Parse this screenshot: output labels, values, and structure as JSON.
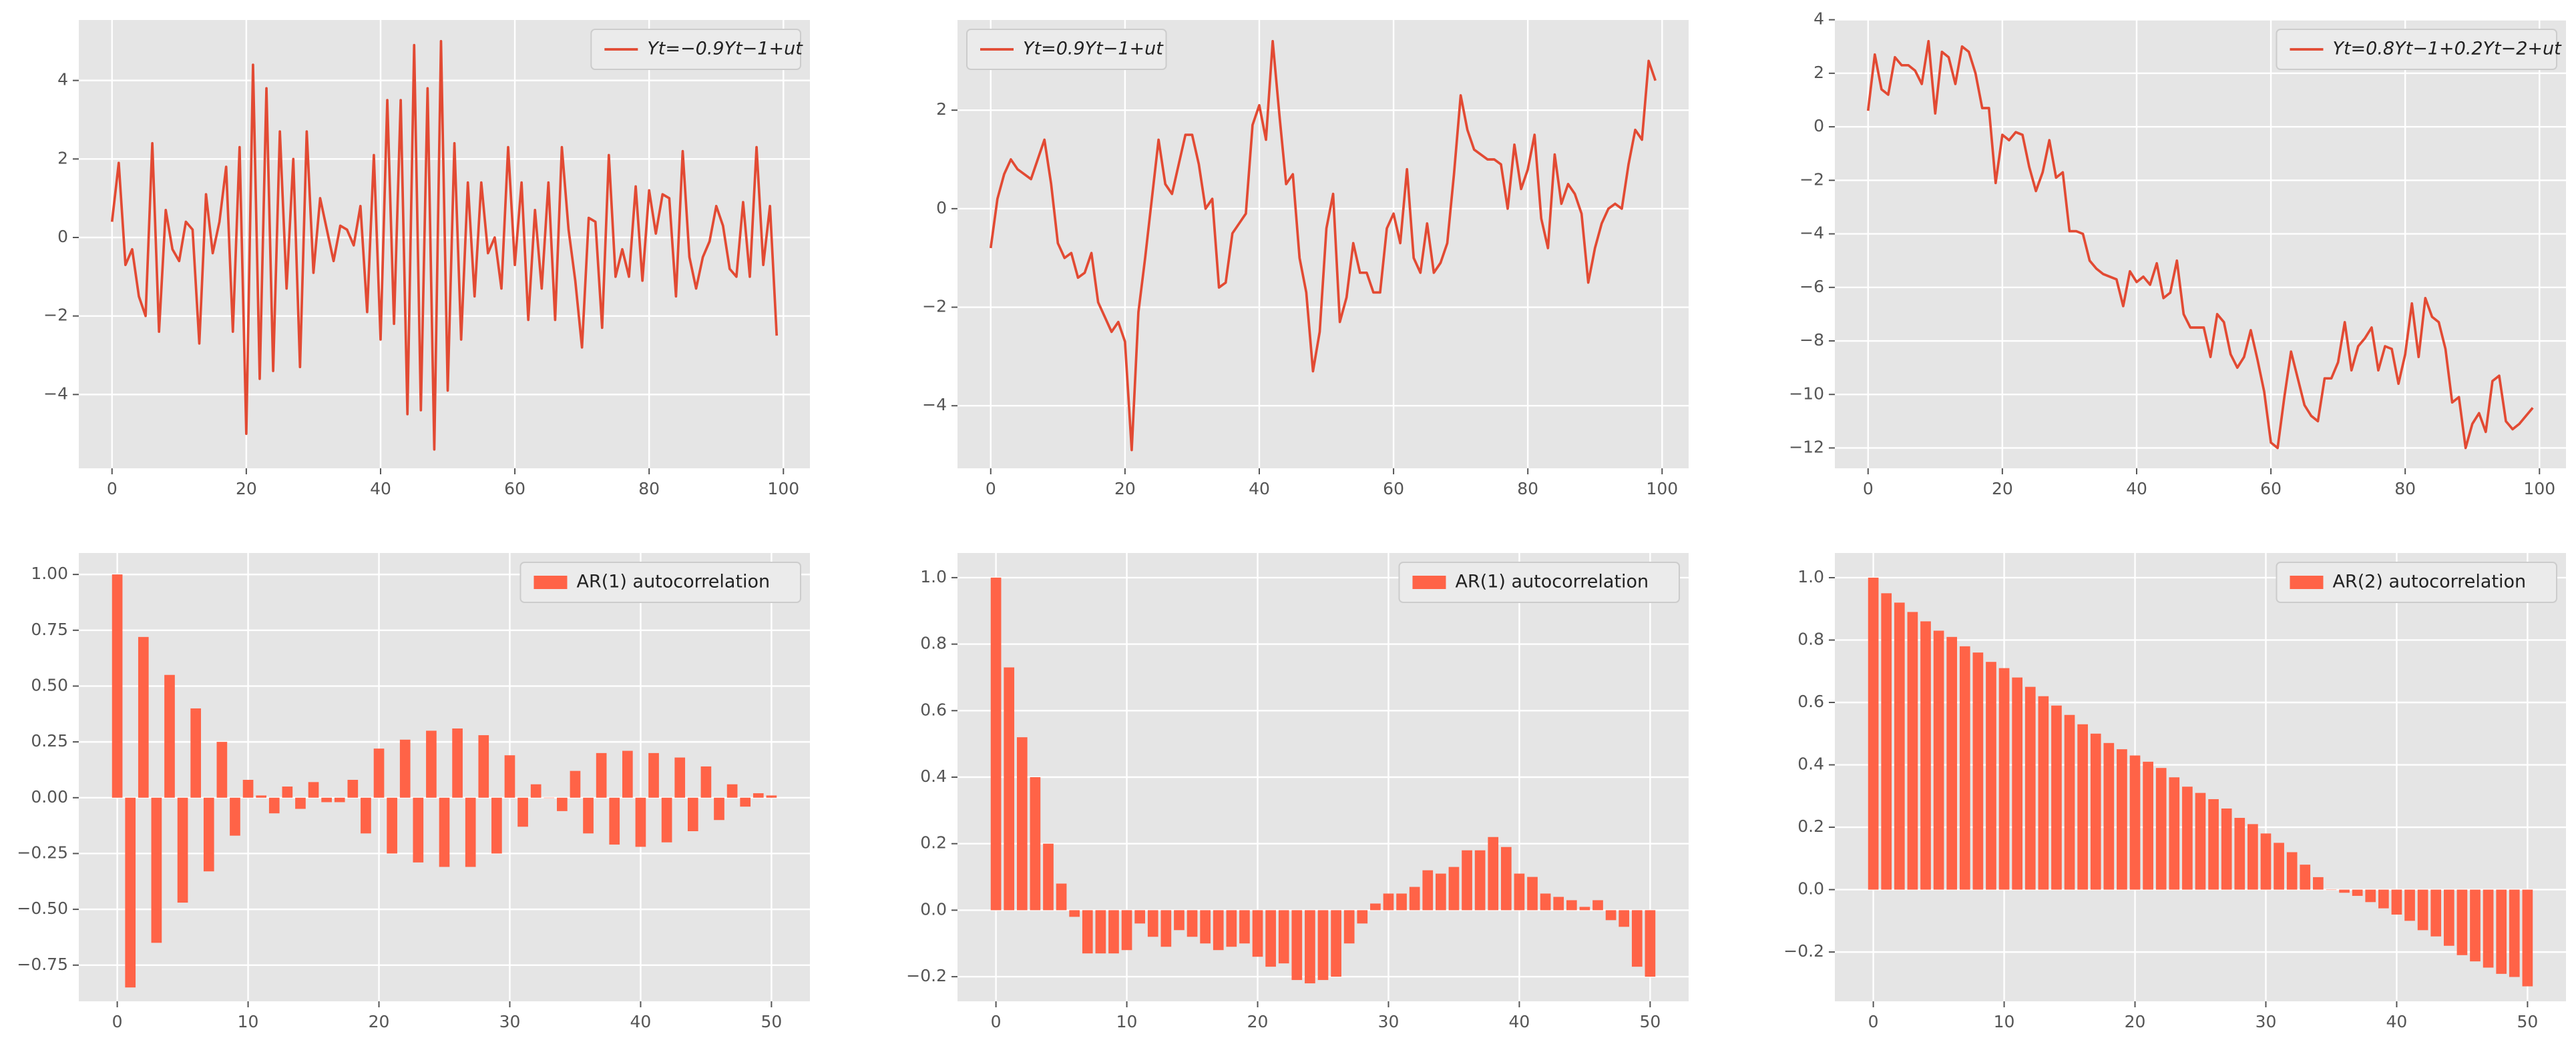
{
  "chart_data": [
    {
      "type": "line",
      "series": [
        {
          "name": "Yt=−0.9Yt−1+ut",
          "color": "#e24a33",
          "values": [
            0.4,
            1.9,
            -0.7,
            -0.3,
            -1.5,
            -2.0,
            2.4,
            -2.4,
            0.7,
            -0.3,
            -0.6,
            0.4,
            0.2,
            -2.7,
            1.1,
            -0.4,
            0.4,
            1.8,
            -2.4,
            2.3,
            -5.0,
            4.4,
            -3.6,
            3.8,
            -3.4,
            2.7,
            -1.3,
            2.0,
            -3.3,
            2.7,
            -0.9,
            1.0,
            0.2,
            -0.6,
            0.3,
            0.2,
            -0.2,
            0.8,
            -1.9,
            2.1,
            -2.6,
            3.5,
            -2.2,
            3.5,
            -4.5,
            4.9,
            -4.4,
            3.8,
            -5.4,
            5.0,
            -3.9,
            2.4,
            -2.6,
            1.4,
            -1.5,
            1.4,
            -0.4,
            0.0,
            -1.3,
            2.3,
            -0.7,
            1.4,
            -2.1,
            0.7,
            -1.3,
            1.4,
            -2.1,
            2.3,
            0.2,
            -1.1,
            -2.8,
            0.5,
            0.4,
            -2.3,
            2.1,
            -1.0,
            -0.3,
            -1.0,
            1.3,
            -1.1,
            1.2,
            0.1,
            1.1,
            1.0,
            -1.5,
            2.2,
            -0.5,
            -1.3,
            -0.5,
            -0.1,
            0.8,
            0.3,
            -0.8,
            -1.0,
            0.9,
            -1.0,
            2.3,
            -0.7,
            0.8,
            -2.5
          ]
        }
      ],
      "x": [
        0,
        1,
        2,
        3,
        4,
        5,
        6,
        7,
        8,
        9,
        10,
        11,
        12,
        13,
        14,
        15,
        16,
        17,
        18,
        19,
        20,
        21,
        22,
        23,
        24,
        25,
        26,
        27,
        28,
        29,
        30,
        31,
        32,
        33,
        34,
        35,
        36,
        37,
        38,
        39,
        40,
        41,
        42,
        43,
        44,
        45,
        46,
        47,
        48,
        49,
        50,
        51,
        52,
        53,
        54,
        55,
        56,
        57,
        58,
        59,
        60,
        61,
        62,
        63,
        64,
        65,
        66,
        67,
        68,
        69,
        70,
        71,
        72,
        73,
        74,
        75,
        76,
        77,
        78,
        79,
        80,
        81,
        82,
        83,
        84,
        85,
        86,
        87,
        88,
        89,
        90,
        91,
        92,
        93,
        94,
        95,
        96,
        97,
        98,
        99
      ],
      "xlim": [
        -4.95,
        103.95
      ],
      "xticks": [
        0,
        20,
        40,
        60,
        80,
        100
      ],
      "ylim": [
        -5.88,
        5.54
      ],
      "yticks": [
        {
          "value": -4,
          "label": "−4"
        },
        {
          "value": -2,
          "label": "−2"
        },
        0,
        2,
        4
      ],
      "grid": true,
      "legend": "upper right"
    },
    {
      "type": "line",
      "series": [
        {
          "name": "Yt=0.9Yt−1+ut",
          "color": "#e24a33",
          "values": [
            -0.8,
            0.2,
            0.7,
            1.0,
            0.8,
            0.7,
            0.6,
            1.0,
            1.4,
            0.5,
            -0.7,
            -1.0,
            -0.9,
            -1.4,
            -1.3,
            -0.9,
            -1.9,
            -2.2,
            -2.5,
            -2.3,
            -2.7,
            -4.9,
            -2.1,
            -1.0,
            0.2,
            1.4,
            0.5,
            0.3,
            0.9,
            1.5,
            1.5,
            0.9,
            0.0,
            0.2,
            -1.6,
            -1.5,
            -0.5,
            -0.3,
            -0.1,
            1.7,
            2.1,
            1.4,
            3.4,
            1.9,
            0.5,
            0.7,
            -1.0,
            -1.7,
            -3.3,
            -2.5,
            -0.4,
            0.3,
            -2.3,
            -1.8,
            -0.7,
            -1.3,
            -1.3,
            -1.7,
            -1.7,
            -0.4,
            -0.1,
            -0.7,
            0.8,
            -1.0,
            -1.3,
            -0.3,
            -1.3,
            -1.1,
            -0.7,
            0.7,
            2.3,
            1.6,
            1.2,
            1.1,
            1.0,
            1.0,
            0.9,
            0.0,
            1.3,
            0.4,
            0.8,
            1.5,
            -0.2,
            -0.8,
            1.1,
            0.1,
            0.5,
            0.3,
            -0.1,
            -1.5,
            -0.8,
            -0.3,
            0.0,
            0.1,
            0.0,
            0.9,
            1.6,
            1.4,
            3.0,
            2.6
          ]
        }
      ],
      "x": [
        0,
        1,
        2,
        3,
        4,
        5,
        6,
        7,
        8,
        9,
        10,
        11,
        12,
        13,
        14,
        15,
        16,
        17,
        18,
        19,
        20,
        21,
        22,
        23,
        24,
        25,
        26,
        27,
        28,
        29,
        30,
        31,
        32,
        33,
        34,
        35,
        36,
        37,
        38,
        39,
        40,
        41,
        42,
        43,
        44,
        45,
        46,
        47,
        48,
        49,
        50,
        51,
        52,
        53,
        54,
        55,
        56,
        57,
        58,
        59,
        60,
        61,
        62,
        63,
        64,
        65,
        66,
        67,
        68,
        69,
        70,
        71,
        72,
        73,
        74,
        75,
        76,
        77,
        78,
        79,
        80,
        81,
        82,
        83,
        84,
        85,
        86,
        87,
        88,
        89,
        90,
        91,
        92,
        93,
        94,
        95,
        96,
        97,
        98,
        99
      ],
      "xlim": [
        -4.95,
        103.95
      ],
      "xticks": [
        0,
        20,
        40,
        60,
        80,
        100
      ],
      "ylim": [
        -5.27,
        3.83
      ],
      "yticks": [
        {
          "value": -4,
          "label": "−4"
        },
        {
          "value": -2,
          "label": "−2"
        },
        0,
        2
      ],
      "grid": true,
      "legend": "upper left"
    },
    {
      "type": "line",
      "series": [
        {
          "name": "Yt=0.8Yt−1+0.2Yt−2+ut",
          "color": "#e24a33",
          "values": [
            0.6,
            2.7,
            1.4,
            1.2,
            2.6,
            2.3,
            2.3,
            2.1,
            1.6,
            3.2,
            0.5,
            2.8,
            2.6,
            1.6,
            3.0,
            2.8,
            2.0,
            0.7,
            0.7,
            -2.1,
            -0.3,
            -0.5,
            -0.2,
            -0.3,
            -1.5,
            -2.4,
            -1.7,
            -0.5,
            -1.9,
            -1.7,
            -3.9,
            -3.9,
            -4.0,
            -5.0,
            -5.3,
            -5.5,
            -5.6,
            -5.7,
            -6.7,
            -5.4,
            -5.8,
            -5.6,
            -5.9,
            -5.1,
            -6.4,
            -6.2,
            -5.0,
            -7.0,
            -7.5,
            -7.5,
            -7.5,
            -8.6,
            -7.0,
            -7.3,
            -8.5,
            -9.0,
            -8.6,
            -7.6,
            -8.7,
            -9.9,
            -11.8,
            -12.0,
            -10.1,
            -8.4,
            -9.4,
            -10.4,
            -10.8,
            -11.0,
            -9.4,
            -9.4,
            -8.8,
            -7.3,
            -9.1,
            -8.2,
            -7.9,
            -7.5,
            -9.1,
            -8.2,
            -8.3,
            -9.6,
            -8.5,
            -6.6,
            -8.6,
            -6.4,
            -7.1,
            -7.3,
            -8.3,
            -10.3,
            -10.1,
            -12.0,
            -11.1,
            -10.7,
            -11.4,
            -9.5,
            -9.3,
            -11.0,
            -11.3,
            -11.1,
            -10.8,
            -10.5
          ]
        }
      ],
      "x": [
        0,
        1,
        2,
        3,
        4,
        5,
        6,
        7,
        8,
        9,
        10,
        11,
        12,
        13,
        14,
        15,
        16,
        17,
        18,
        19,
        20,
        21,
        22,
        23,
        24,
        25,
        26,
        27,
        28,
        29,
        30,
        31,
        32,
        33,
        34,
        35,
        36,
        37,
        38,
        39,
        40,
        41,
        42,
        43,
        44,
        45,
        46,
        47,
        48,
        49,
        50,
        51,
        52,
        53,
        54,
        55,
        56,
        57,
        58,
        59,
        60,
        61,
        62,
        63,
        64,
        65,
        66,
        67,
        68,
        69,
        70,
        71,
        72,
        73,
        74,
        75,
        76,
        77,
        78,
        79,
        80,
        81,
        82,
        83,
        84,
        85,
        86,
        87,
        88,
        89,
        90,
        91,
        92,
        93,
        94,
        95,
        96,
        97,
        98,
        99
      ],
      "xlim": [
        -4.95,
        103.95
      ],
      "xticks": [
        0,
        20,
        40,
        60,
        80,
        100
      ],
      "ylim": [
        -12.76,
        3.99
      ],
      "yticks": [
        {
          "value": -12,
          "label": "−12"
        },
        {
          "value": -10,
          "label": "−10"
        },
        {
          "value": -8,
          "label": "−8"
        },
        {
          "value": -6,
          "label": "−6"
        },
        {
          "value": -4,
          "label": "−4"
        },
        {
          "value": -2,
          "label": "−2"
        },
        0,
        2,
        4
      ],
      "grid": true,
      "legend": "upper right"
    },
    {
      "type": "bar",
      "series": [
        {
          "name": "AR(1) autocorrelation",
          "color": "#ff6347",
          "values": [
            1.0,
            -0.85,
            0.72,
            -0.65,
            0.55,
            -0.47,
            0.4,
            -0.33,
            0.25,
            -0.17,
            0.08,
            0.01,
            -0.07,
            0.05,
            -0.05,
            0.07,
            -0.02,
            -0.02,
            0.08,
            -0.16,
            0.22,
            -0.25,
            0.26,
            -0.29,
            0.3,
            -0.31,
            0.31,
            -0.31,
            0.28,
            -0.25,
            0.19,
            -0.13,
            0.06,
            0.0,
            -0.06,
            0.12,
            -0.16,
            0.2,
            -0.21,
            0.21,
            -0.22,
            0.2,
            -0.2,
            0.18,
            -0.15,
            0.14,
            -0.1,
            0.06,
            -0.04,
            0.02,
            0.01
          ]
        }
      ],
      "x": [
        0,
        1,
        2,
        3,
        4,
        5,
        6,
        7,
        8,
        9,
        10,
        11,
        12,
        13,
        14,
        15,
        16,
        17,
        18,
        19,
        20,
        21,
        22,
        23,
        24,
        25,
        26,
        27,
        28,
        29,
        30,
        31,
        32,
        33,
        34,
        35,
        36,
        37,
        38,
        39,
        40,
        41,
        42,
        43,
        44,
        45,
        46,
        47,
        48,
        49,
        50
      ],
      "xlim": [
        -2.94,
        52.94
      ],
      "xticks": [
        0,
        10,
        20,
        30,
        40,
        50
      ],
      "ylim": [
        -0.912,
        1.096
      ],
      "yticks": [
        {
          "value": -0.75,
          "label": "−0.75"
        },
        {
          "value": -0.5,
          "label": "−0.50"
        },
        {
          "value": -0.25,
          "label": "−0.25"
        },
        {
          "value": 0,
          "label": "0.00"
        },
        0.25,
        {
          "value": 0.5,
          "label": "0.50"
        },
        0.75,
        {
          "value": 1,
          "label": "1.00"
        }
      ],
      "grid": true,
      "legend": "upper right"
    },
    {
      "type": "bar",
      "series": [
        {
          "name": "AR(1) autocorrelation",
          "color": "#ff6347",
          "values": [
            1.0,
            0.73,
            0.52,
            0.4,
            0.2,
            0.08,
            -0.02,
            -0.13,
            -0.13,
            -0.13,
            -0.12,
            -0.04,
            -0.08,
            -0.11,
            -0.06,
            -0.08,
            -0.1,
            -0.12,
            -0.11,
            -0.1,
            -0.14,
            -0.17,
            -0.16,
            -0.21,
            -0.22,
            -0.21,
            -0.2,
            -0.1,
            -0.04,
            0.02,
            0.05,
            0.05,
            0.07,
            0.12,
            0.11,
            0.13,
            0.18,
            0.18,
            0.22,
            0.19,
            0.11,
            0.1,
            0.05,
            0.04,
            0.03,
            0.01,
            0.03,
            -0.03,
            -0.05,
            -0.17,
            -0.2
          ]
        }
      ],
      "x": [
        0,
        1,
        2,
        3,
        4,
        5,
        6,
        7,
        8,
        9,
        10,
        11,
        12,
        13,
        14,
        15,
        16,
        17,
        18,
        19,
        20,
        21,
        22,
        23,
        24,
        25,
        26,
        27,
        28,
        29,
        30,
        31,
        32,
        33,
        34,
        35,
        36,
        37,
        38,
        39,
        40,
        41,
        42,
        43,
        44,
        45,
        46,
        47,
        48,
        49,
        50
      ],
      "xlim": [
        -2.94,
        52.94
      ],
      "xticks": [
        0,
        10,
        20,
        30,
        40,
        50
      ],
      "ylim": [
        -0.274,
        1.074
      ],
      "yticks": [
        {
          "value": -0.2,
          "label": "−0.2"
        },
        {
          "value": 0,
          "label": "0.0"
        },
        0.2,
        0.4,
        0.6,
        0.8,
        {
          "value": 1,
          "label": "1.0"
        }
      ],
      "grid": true,
      "legend": "upper right"
    },
    {
      "type": "bar",
      "series": [
        {
          "name": "AR(2) autocorrelation",
          "color": "#ff6347",
          "values": [
            1.0,
            0.95,
            0.92,
            0.89,
            0.86,
            0.83,
            0.81,
            0.78,
            0.76,
            0.73,
            0.71,
            0.68,
            0.65,
            0.62,
            0.59,
            0.56,
            0.53,
            0.5,
            0.47,
            0.45,
            0.43,
            0.41,
            0.39,
            0.36,
            0.33,
            0.31,
            0.29,
            0.26,
            0.23,
            0.21,
            0.18,
            0.15,
            0.12,
            0.08,
            0.04,
            0.0,
            -0.01,
            -0.02,
            -0.04,
            -0.06,
            -0.08,
            -0.1,
            -0.13,
            -0.15,
            -0.18,
            -0.21,
            -0.23,
            -0.25,
            -0.27,
            -0.28,
            -0.31
          ]
        }
      ],
      "x": [
        0,
        1,
        2,
        3,
        4,
        5,
        6,
        7,
        8,
        9,
        10,
        11,
        12,
        13,
        14,
        15,
        16,
        17,
        18,
        19,
        20,
        21,
        22,
        23,
        24,
        25,
        26,
        27,
        28,
        29,
        30,
        31,
        32,
        33,
        34,
        35,
        36,
        37,
        38,
        39,
        40,
        41,
        42,
        43,
        44,
        45,
        46,
        47,
        48,
        49,
        50
      ],
      "xlim": [
        -2.94,
        52.94
      ],
      "xticks": [
        0,
        10,
        20,
        30,
        40,
        50
      ],
      "ylim": [
        -0.358,
        1.079
      ],
      "yticks": [
        {
          "value": -0.2,
          "label": "−0.2"
        },
        {
          "value": 0,
          "label": "0.0"
        },
        0.2,
        0.4,
        0.6,
        0.8,
        {
          "value": 1,
          "label": "1.0"
        }
      ],
      "grid": true,
      "legend": "upper right"
    }
  ]
}
